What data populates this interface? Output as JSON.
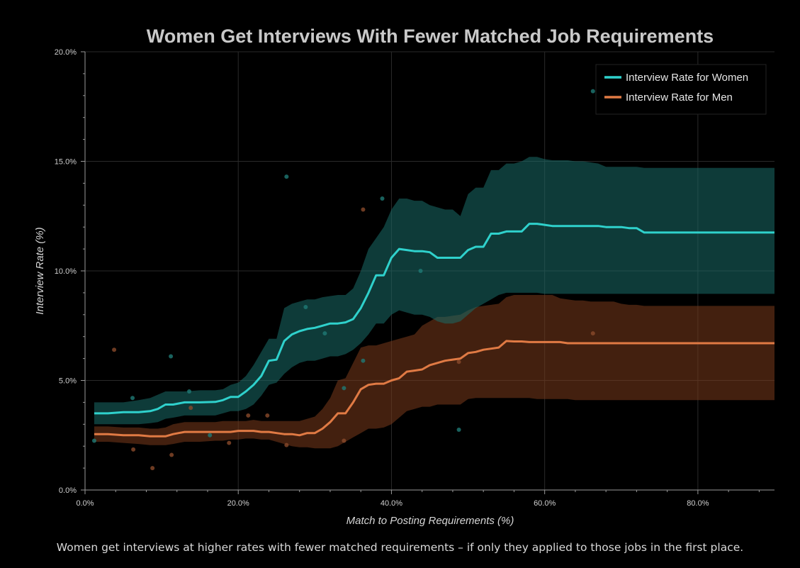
{
  "chart_data": {
    "type": "line",
    "title": "Women Get Interviews With Fewer Matched Job Requirements",
    "xlabel": "Match to Posting Requirements (%)",
    "ylabel": "Interview Rate (%)",
    "xlim": [
      0,
      90
    ],
    "ylim": [
      0,
      20
    ],
    "x_ticks": [
      0,
      20,
      40,
      60,
      80
    ],
    "x_tick_labels": [
      "0.0%",
      "20.0%",
      "40.0%",
      "60.0%",
      "80.0%"
    ],
    "y_ticks": [
      0,
      5,
      10,
      15,
      20
    ],
    "y_tick_labels": [
      "0.0%",
      "5.0%",
      "10.0%",
      "15.0%",
      "20.0%"
    ],
    "grid": true,
    "legend_position": "top-right",
    "colors": {
      "women": "#2fd1cc",
      "women_band": "#1a6b67",
      "men": "#e07a44",
      "men_band": "#7a3a1c",
      "background": "#000000"
    },
    "series": [
      {
        "name": "Interview Rate for Women",
        "x": [
          1.2,
          3,
          5,
          7,
          8.5,
          9.5,
          10.5,
          11.5,
          13,
          15,
          17,
          18,
          19,
          20,
          21,
          22,
          23,
          24,
          25,
          26,
          27,
          28,
          29,
          30,
          31,
          32,
          33,
          34,
          35,
          36,
          37,
          38,
          39,
          40,
          41,
          42,
          43,
          44,
          45,
          46,
          47,
          48,
          49,
          50,
          51,
          52,
          53,
          54,
          55,
          56,
          57,
          58,
          59,
          60,
          61,
          62,
          63,
          64,
          65,
          66,
          67,
          68,
          69,
          70,
          71,
          72,
          73,
          75,
          80,
          85,
          90
        ],
        "values": [
          3.5,
          3.5,
          3.55,
          3.55,
          3.6,
          3.7,
          3.9,
          3.9,
          4.0,
          4.0,
          4.02,
          4.1,
          4.25,
          4.25,
          4.5,
          4.8,
          5.2,
          5.9,
          5.95,
          6.8,
          7.1,
          7.25,
          7.35,
          7.4,
          7.5,
          7.6,
          7.6,
          7.65,
          7.8,
          8.3,
          9.0,
          9.8,
          9.8,
          10.6,
          11.0,
          10.95,
          10.9,
          10.9,
          10.85,
          10.6,
          10.6,
          10.6,
          10.6,
          10.95,
          11.1,
          11.1,
          11.7,
          11.7,
          11.8,
          11.8,
          11.8,
          12.15,
          12.15,
          12.1,
          12.05,
          12.05,
          12.05,
          12.05,
          12.05,
          12.05,
          12.05,
          12.0,
          12.0,
          12.0,
          11.95,
          11.95,
          11.75,
          11.75,
          11.75,
          11.75,
          11.75
        ],
        "ci_lower": [
          3.0,
          3.0,
          3.0,
          3.0,
          3.05,
          3.1,
          3.25,
          3.3,
          3.4,
          3.4,
          3.4,
          3.5,
          3.6,
          3.6,
          3.7,
          3.9,
          4.3,
          4.8,
          4.9,
          5.3,
          5.6,
          5.8,
          5.9,
          5.9,
          6.0,
          6.1,
          6.1,
          6.2,
          6.4,
          6.7,
          7.1,
          7.6,
          7.6,
          8.0,
          8.2,
          8.1,
          8.0,
          8.0,
          7.9,
          7.7,
          7.6,
          7.6,
          7.7,
          8.0,
          8.3,
          8.5,
          8.7,
          8.9,
          9.0,
          9.0,
          9.0,
          9.0,
          9.0,
          8.95,
          8.95,
          8.95,
          8.95,
          8.95,
          8.95,
          8.95,
          8.95,
          8.95,
          8.95,
          8.95,
          8.95,
          8.95,
          8.95,
          8.95,
          8.95,
          8.95,
          8.95
        ],
        "ci_upper": [
          4.0,
          4.0,
          4.0,
          4.1,
          4.2,
          4.35,
          4.5,
          4.5,
          4.5,
          4.55,
          4.55,
          4.6,
          4.8,
          4.9,
          5.2,
          5.7,
          6.3,
          6.9,
          6.9,
          8.3,
          8.5,
          8.6,
          8.7,
          8.7,
          8.8,
          8.85,
          8.9,
          8.9,
          9.2,
          10.0,
          11.0,
          11.5,
          12.0,
          12.8,
          13.3,
          13.3,
          13.2,
          13.2,
          13.0,
          12.9,
          12.8,
          12.8,
          12.5,
          13.5,
          13.8,
          13.8,
          14.6,
          14.6,
          14.9,
          14.9,
          15.0,
          15.2,
          15.2,
          15.1,
          15.05,
          15.05,
          15.05,
          15.0,
          15.0,
          14.95,
          14.9,
          14.75,
          14.75,
          14.75,
          14.75,
          14.75,
          14.7,
          14.7,
          14.7,
          14.7,
          14.7
        ]
      },
      {
        "name": "Interview Rate for Men",
        "x": [
          1.2,
          3,
          5,
          7,
          8.5,
          9.5,
          10.5,
          11.5,
          13,
          15,
          17,
          18,
          19,
          20,
          21,
          22,
          23,
          24,
          25,
          26,
          27,
          28,
          29,
          30,
          31,
          32,
          33,
          34,
          35,
          36,
          37,
          38,
          39,
          40,
          41,
          42,
          43,
          44,
          45,
          46,
          47,
          48,
          49,
          50,
          51,
          52,
          53,
          54,
          55,
          56,
          57,
          58,
          59,
          60,
          61,
          62,
          63,
          64,
          65,
          66,
          67,
          68,
          69,
          70,
          71,
          72,
          73,
          75,
          80,
          85,
          90
        ],
        "values": [
          2.55,
          2.55,
          2.5,
          2.5,
          2.45,
          2.45,
          2.45,
          2.55,
          2.65,
          2.65,
          2.65,
          2.65,
          2.65,
          2.7,
          2.7,
          2.7,
          2.65,
          2.65,
          2.6,
          2.55,
          2.55,
          2.5,
          2.6,
          2.6,
          2.8,
          3.1,
          3.5,
          3.5,
          4.0,
          4.6,
          4.8,
          4.85,
          4.85,
          5.0,
          5.1,
          5.4,
          5.45,
          5.5,
          5.7,
          5.8,
          5.9,
          5.95,
          6.0,
          6.25,
          6.3,
          6.4,
          6.45,
          6.5,
          6.8,
          6.78,
          6.78,
          6.75,
          6.75,
          6.75,
          6.75,
          6.75,
          6.7,
          6.7,
          6.7,
          6.7,
          6.7,
          6.7,
          6.7,
          6.7,
          6.7,
          6.7,
          6.7,
          6.7,
          6.7,
          6.7,
          6.7
        ],
        "ci_lower": [
          2.2,
          2.2,
          2.15,
          2.1,
          2.05,
          2.05,
          2.05,
          2.1,
          2.2,
          2.2,
          2.25,
          2.25,
          2.3,
          2.3,
          2.35,
          2.35,
          2.3,
          2.3,
          2.2,
          2.1,
          2.0,
          1.95,
          1.95,
          1.9,
          1.9,
          1.9,
          2.0,
          2.2,
          2.4,
          2.6,
          2.8,
          2.8,
          2.85,
          3.0,
          3.3,
          3.6,
          3.7,
          3.8,
          3.8,
          3.9,
          3.9,
          3.9,
          3.9,
          4.15,
          4.2,
          4.2,
          4.2,
          4.2,
          4.2,
          4.2,
          4.2,
          4.2,
          4.15,
          4.15,
          4.15,
          4.15,
          4.15,
          4.1,
          4.1,
          4.1,
          4.1,
          4.1,
          4.1,
          4.1,
          4.1,
          4.1,
          4.1,
          4.1,
          4.1,
          4.1,
          4.1
        ],
        "ci_upper": [
          2.9,
          2.9,
          2.85,
          2.85,
          2.8,
          2.8,
          2.85,
          3.0,
          3.1,
          3.1,
          3.1,
          3.15,
          3.15,
          3.15,
          3.15,
          3.2,
          3.15,
          3.15,
          3.15,
          3.15,
          3.15,
          3.15,
          3.25,
          3.35,
          3.7,
          4.2,
          5.0,
          5.1,
          5.8,
          6.5,
          6.6,
          6.6,
          6.7,
          6.8,
          6.9,
          7.0,
          7.1,
          7.5,
          7.7,
          7.9,
          7.9,
          7.95,
          8.0,
          8.2,
          8.35,
          8.4,
          8.45,
          8.5,
          8.8,
          8.9,
          8.9,
          8.9,
          8.9,
          8.9,
          8.9,
          8.75,
          8.7,
          8.65,
          8.65,
          8.6,
          8.6,
          8.6,
          8.6,
          8.5,
          8.45,
          8.45,
          8.4,
          8.4,
          8.4,
          8.4,
          8.4
        ]
      }
    ],
    "scatter_women": [
      {
        "x": 6.2,
        "y": 4.2
      },
      {
        "x": 11.2,
        "y": 6.1
      },
      {
        "x": 13.6,
        "y": 4.5
      },
      {
        "x": 16.3,
        "y": 2.5
      },
      {
        "x": 26.3,
        "y": 14.3
      },
      {
        "x": 28.8,
        "y": 8.35
      },
      {
        "x": 31.3,
        "y": 7.15
      },
      {
        "x": 33.8,
        "y": 4.65
      },
      {
        "x": 36.3,
        "y": 5.9
      },
      {
        "x": 38.8,
        "y": 13.3
      },
      {
        "x": 43.8,
        "y": 10.0
      },
      {
        "x": 48.8,
        "y": 2.75
      },
      {
        "x": 66.3,
        "y": 18.2
      },
      {
        "x": 1.2,
        "y": 2.25
      }
    ],
    "scatter_men": [
      {
        "x": 3.8,
        "y": 6.4
      },
      {
        "x": 6.3,
        "y": 1.85
      },
      {
        "x": 8.8,
        "y": 1.0
      },
      {
        "x": 11.3,
        "y": 1.6
      },
      {
        "x": 13.8,
        "y": 3.75
      },
      {
        "x": 18.8,
        "y": 2.15
      },
      {
        "x": 21.3,
        "y": 3.4
      },
      {
        "x": 23.8,
        "y": 3.4
      },
      {
        "x": 26.3,
        "y": 2.05
      },
      {
        "x": 33.8,
        "y": 2.25
      },
      {
        "x": 36.3,
        "y": 12.8
      },
      {
        "x": 48.8,
        "y": 5.85
      },
      {
        "x": 66.3,
        "y": 7.15
      }
    ]
  },
  "caption": "Women get interviews at higher rates with fewer matched requirements – if only they applied to those jobs in the first place."
}
